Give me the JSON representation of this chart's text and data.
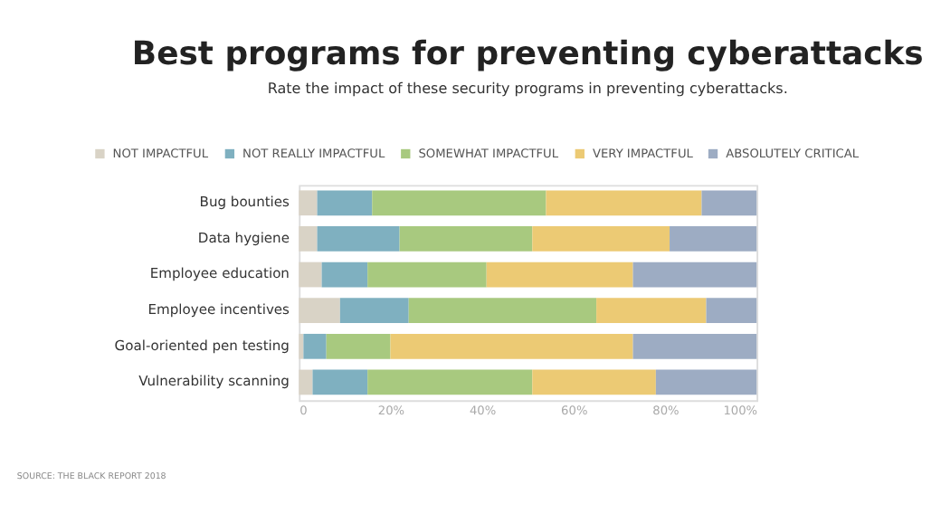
{
  "chart_data": {
    "type": "bar",
    "orientation": "horizontal",
    "stacked": true,
    "title": "Best programs for preventing cyberattacks",
    "subtitle": "Rate the impact of these security programs in preventing cyberattacks.",
    "categories": [
      "Bug bounties",
      "Data hygiene",
      "Employee education",
      "Employee incentives",
      "Goal-oriented pen testing",
      "Vulnerability scanning"
    ],
    "series": [
      {
        "name": "NOT IMPACTFUL",
        "color": "#d9d3c6",
        "values": [
          4,
          4,
          5,
          9,
          1,
          3
        ]
      },
      {
        "name": "NOT REALLY IMPACTFUL",
        "color": "#7fb0c0",
        "values": [
          12,
          18,
          10,
          15,
          5,
          12
        ]
      },
      {
        "name": "SOMEWHAT IMPACTFUL",
        "color": "#a8c97f",
        "values": [
          38,
          29,
          26,
          41,
          14,
          36
        ]
      },
      {
        "name": "VERY IMPACTFUL",
        "color": "#ecca74",
        "values": [
          34,
          30,
          32,
          24,
          53,
          27
        ]
      },
      {
        "name": "ABSOLUTELY CRITICAL",
        "color": "#9dacc3",
        "values": [
          12,
          19,
          27,
          11,
          27,
          22
        ]
      }
    ],
    "xlim": [
      0,
      100
    ],
    "xticks": [
      {
        "value": 0,
        "label": "0"
      },
      {
        "value": 20,
        "label": "20%"
      },
      {
        "value": 40,
        "label": "40%"
      },
      {
        "value": 60,
        "label": "60%"
      },
      {
        "value": 80,
        "label": "80%"
      },
      {
        "value": 100,
        "label": "100%"
      }
    ],
    "grid": false,
    "legend": "top",
    "annotations": [
      "SOURCE: THE BLACK REPORT 2018"
    ]
  }
}
